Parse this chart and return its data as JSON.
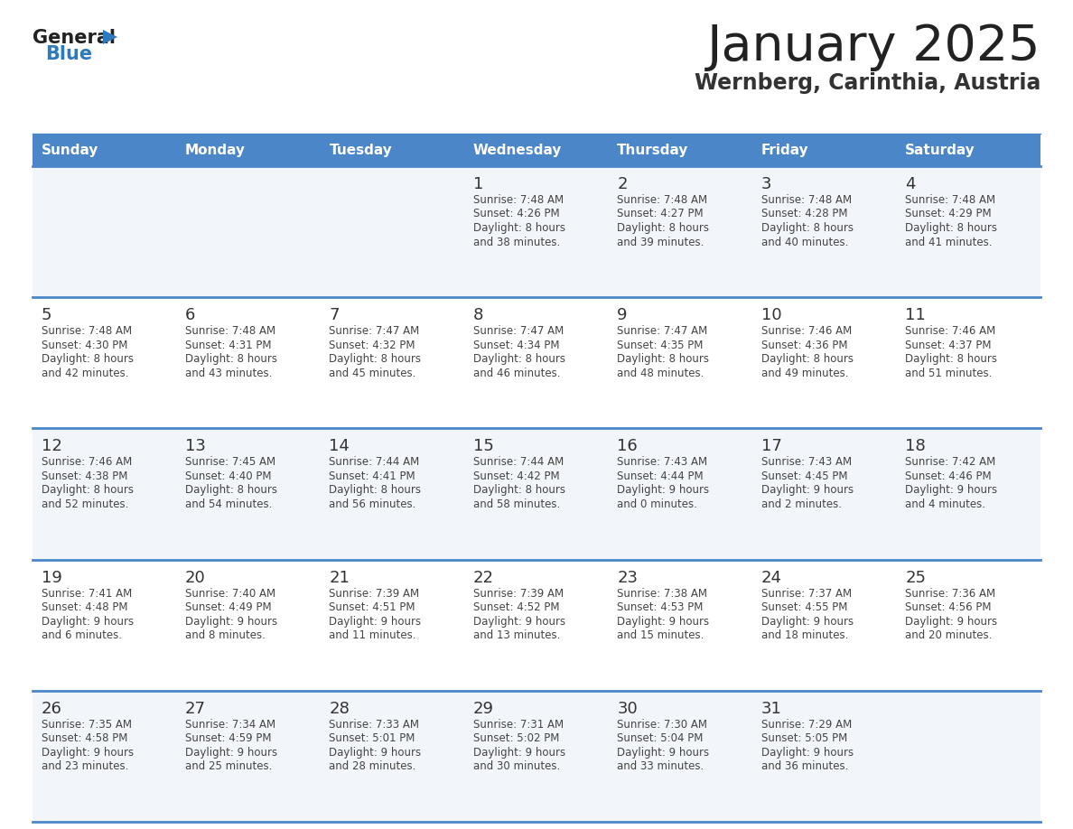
{
  "title": "January 2025",
  "subtitle": "Wernberg, Carinthia, Austria",
  "header_bg": "#4a86c8",
  "header_text_color": "#ffffff",
  "day_names": [
    "Sunday",
    "Monday",
    "Tuesday",
    "Wednesday",
    "Thursday",
    "Friday",
    "Saturday"
  ],
  "row_bg_light": "#f2f5f9",
  "row_bg_white": "#ffffff",
  "separator_color": "#4a86c8",
  "cell_text_color": "#444444",
  "day_number_color": "#333333",
  "title_color": "#222222",
  "subtitle_color": "#333333",
  "logo_text_color": "#222222",
  "logo_blue_color": "#2e7abf",
  "calendar": [
    [
      null,
      null,
      null,
      {
        "day": 1,
        "sunrise": "7:48 AM",
        "sunset": "4:26 PM",
        "daylight": "8 hours\nand 38 minutes."
      },
      {
        "day": 2,
        "sunrise": "7:48 AM",
        "sunset": "4:27 PM",
        "daylight": "8 hours\nand 39 minutes."
      },
      {
        "day": 3,
        "sunrise": "7:48 AM",
        "sunset": "4:28 PM",
        "daylight": "8 hours\nand 40 minutes."
      },
      {
        "day": 4,
        "sunrise": "7:48 AM",
        "sunset": "4:29 PM",
        "daylight": "8 hours\nand 41 minutes."
      }
    ],
    [
      {
        "day": 5,
        "sunrise": "7:48 AM",
        "sunset": "4:30 PM",
        "daylight": "8 hours\nand 42 minutes."
      },
      {
        "day": 6,
        "sunrise": "7:48 AM",
        "sunset": "4:31 PM",
        "daylight": "8 hours\nand 43 minutes."
      },
      {
        "day": 7,
        "sunrise": "7:47 AM",
        "sunset": "4:32 PM",
        "daylight": "8 hours\nand 45 minutes."
      },
      {
        "day": 8,
        "sunrise": "7:47 AM",
        "sunset": "4:34 PM",
        "daylight": "8 hours\nand 46 minutes."
      },
      {
        "day": 9,
        "sunrise": "7:47 AM",
        "sunset": "4:35 PM",
        "daylight": "8 hours\nand 48 minutes."
      },
      {
        "day": 10,
        "sunrise": "7:46 AM",
        "sunset": "4:36 PM",
        "daylight": "8 hours\nand 49 minutes."
      },
      {
        "day": 11,
        "sunrise": "7:46 AM",
        "sunset": "4:37 PM",
        "daylight": "8 hours\nand 51 minutes."
      }
    ],
    [
      {
        "day": 12,
        "sunrise": "7:46 AM",
        "sunset": "4:38 PM",
        "daylight": "8 hours\nand 52 minutes."
      },
      {
        "day": 13,
        "sunrise": "7:45 AM",
        "sunset": "4:40 PM",
        "daylight": "8 hours\nand 54 minutes."
      },
      {
        "day": 14,
        "sunrise": "7:44 AM",
        "sunset": "4:41 PM",
        "daylight": "8 hours\nand 56 minutes."
      },
      {
        "day": 15,
        "sunrise": "7:44 AM",
        "sunset": "4:42 PM",
        "daylight": "8 hours\nand 58 minutes."
      },
      {
        "day": 16,
        "sunrise": "7:43 AM",
        "sunset": "4:44 PM",
        "daylight": "9 hours\nand 0 minutes."
      },
      {
        "day": 17,
        "sunrise": "7:43 AM",
        "sunset": "4:45 PM",
        "daylight": "9 hours\nand 2 minutes."
      },
      {
        "day": 18,
        "sunrise": "7:42 AM",
        "sunset": "4:46 PM",
        "daylight": "9 hours\nand 4 minutes."
      }
    ],
    [
      {
        "day": 19,
        "sunrise": "7:41 AM",
        "sunset": "4:48 PM",
        "daylight": "9 hours\nand 6 minutes."
      },
      {
        "day": 20,
        "sunrise": "7:40 AM",
        "sunset": "4:49 PM",
        "daylight": "9 hours\nand 8 minutes."
      },
      {
        "day": 21,
        "sunrise": "7:39 AM",
        "sunset": "4:51 PM",
        "daylight": "9 hours\nand 11 minutes."
      },
      {
        "day": 22,
        "sunrise": "7:39 AM",
        "sunset": "4:52 PM",
        "daylight": "9 hours\nand 13 minutes."
      },
      {
        "day": 23,
        "sunrise": "7:38 AM",
        "sunset": "4:53 PM",
        "daylight": "9 hours\nand 15 minutes."
      },
      {
        "day": 24,
        "sunrise": "7:37 AM",
        "sunset": "4:55 PM",
        "daylight": "9 hours\nand 18 minutes."
      },
      {
        "day": 25,
        "sunrise": "7:36 AM",
        "sunset": "4:56 PM",
        "daylight": "9 hours\nand 20 minutes."
      }
    ],
    [
      {
        "day": 26,
        "sunrise": "7:35 AM",
        "sunset": "4:58 PM",
        "daylight": "9 hours\nand 23 minutes."
      },
      {
        "day": 27,
        "sunrise": "7:34 AM",
        "sunset": "4:59 PM",
        "daylight": "9 hours\nand 25 minutes."
      },
      {
        "day": 28,
        "sunrise": "7:33 AM",
        "sunset": "5:01 PM",
        "daylight": "9 hours\nand 28 minutes."
      },
      {
        "day": 29,
        "sunrise": "7:31 AM",
        "sunset": "5:02 PM",
        "daylight": "9 hours\nand 30 minutes."
      },
      {
        "day": 30,
        "sunrise": "7:30 AM",
        "sunset": "5:04 PM",
        "daylight": "9 hours\nand 33 minutes."
      },
      {
        "day": 31,
        "sunrise": "7:29 AM",
        "sunset": "5:05 PM",
        "daylight": "9 hours\nand 36 minutes."
      },
      null
    ]
  ]
}
